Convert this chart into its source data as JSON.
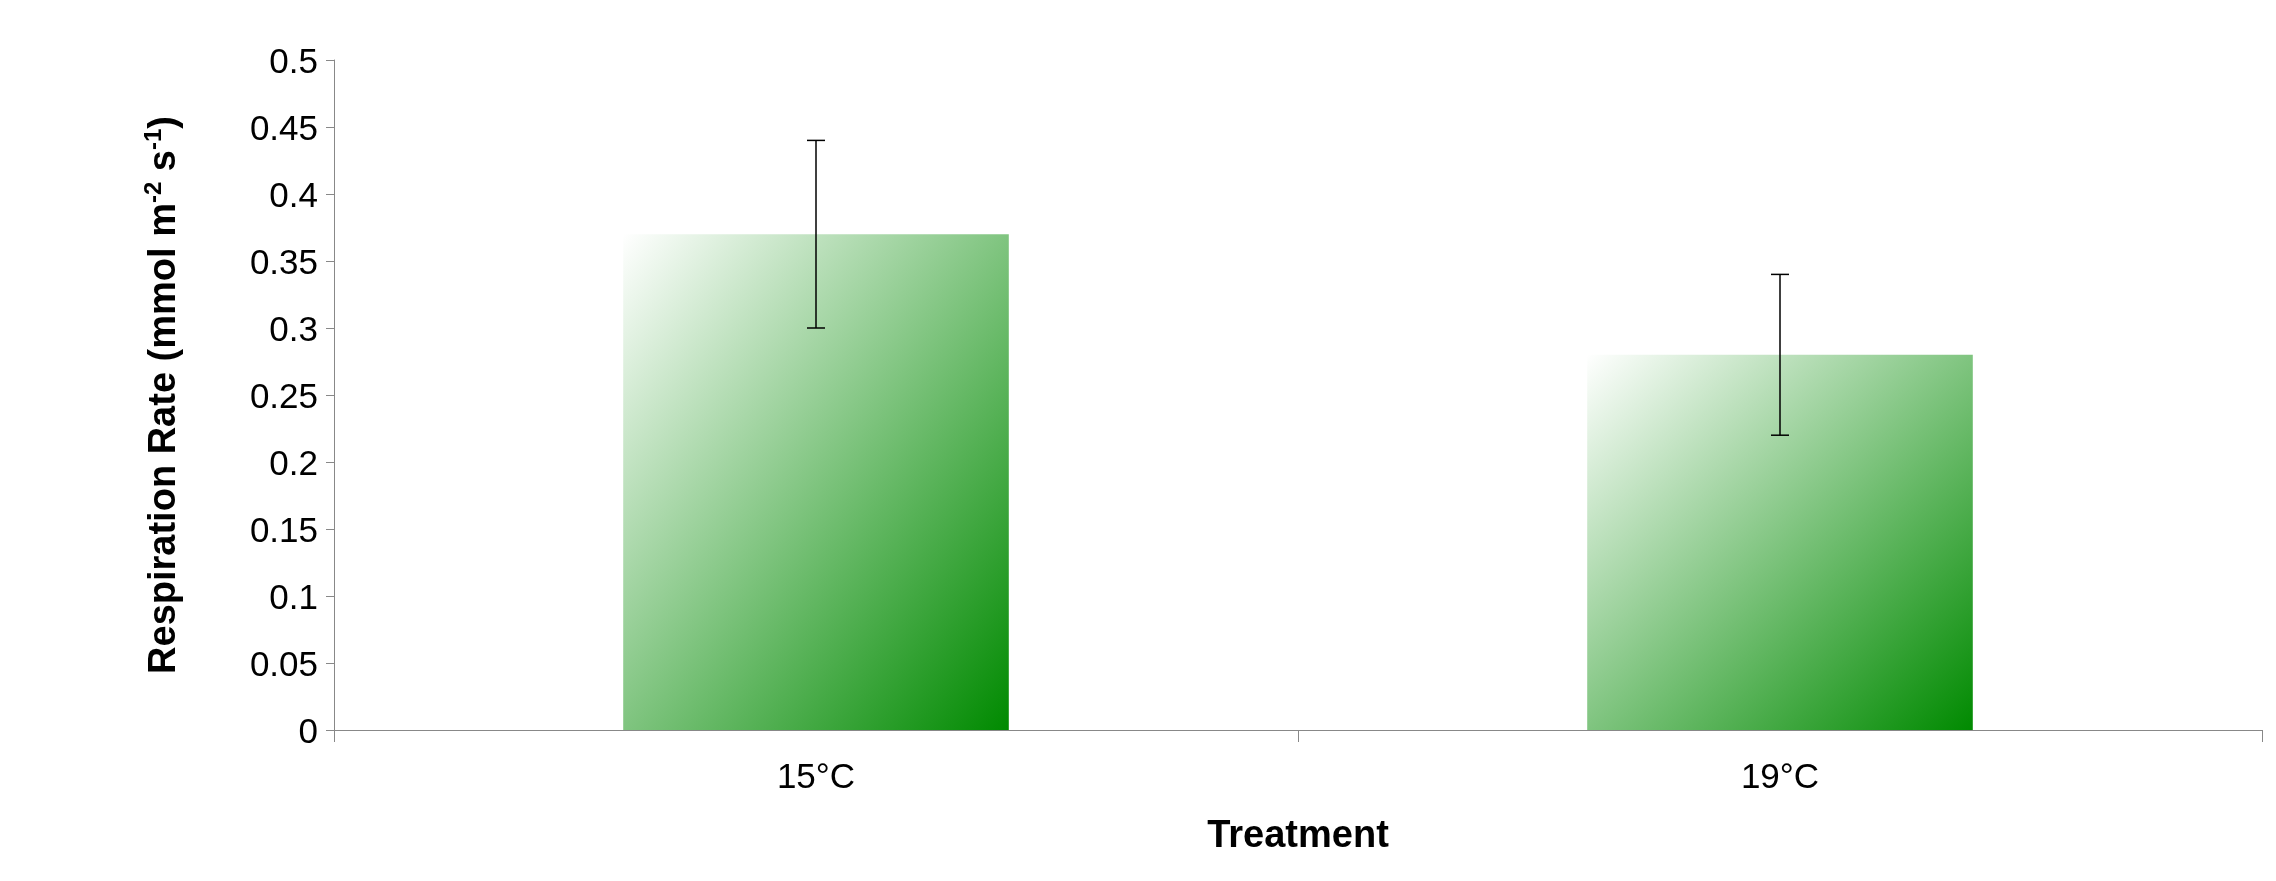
{
  "chart_data": {
    "type": "bar",
    "xlabel": "Treatment",
    "ylabel": "Respiration Rate (mmol m$^{-2}$ s$^{-1}$)",
    "categories": [
      "15°C",
      "19°C"
    ],
    "values": [
      0.37,
      0.28
    ],
    "errors": [
      [
        0.3,
        0.44
      ],
      [
        0.22,
        0.34
      ]
    ],
    "color": "#008a00",
    "ylim": [
      0,
      0.5
    ],
    "yticks": [
      0,
      0.05,
      0.1,
      0.15,
      0.2,
      0.25,
      0.3,
      0.35,
      0.4,
      0.45,
      0.5
    ],
    "grid": false
  }
}
